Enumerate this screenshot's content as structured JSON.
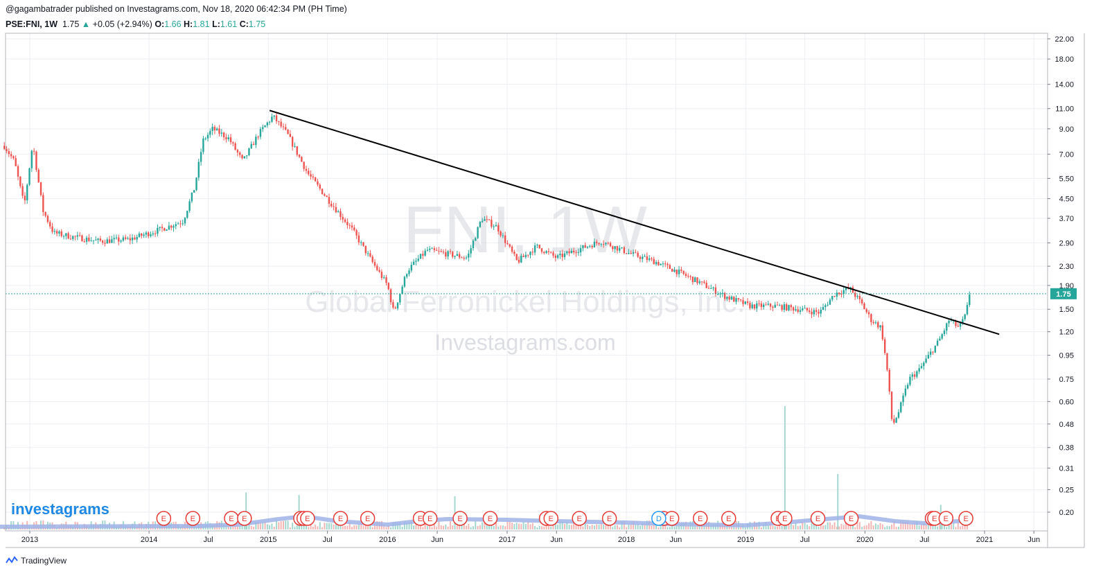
{
  "header": {
    "publisher_line": "@gagambatrader published on Investagrams.com, Nov 18, 2020 06:42:34 PM (PH Time)",
    "symbol": "PSE:FNI, 1W",
    "last": "1.75",
    "change": "+0.05 (+2.94%)",
    "o_label": "O:",
    "o": "1.66",
    "h_label": "H:",
    "h": "1.81",
    "l_label": "L:",
    "l": "1.61",
    "c_label": "C:",
    "c": "1.75",
    "up_arrow": "▲"
  },
  "watermark": {
    "ticker": "FNI, 1W",
    "company": "Global Ferronickel Holdings, Inc.",
    "site": "Investagrams.com"
  },
  "brand": {
    "logo_text": "investagrams",
    "footer": "TradingView"
  },
  "colors": {
    "up": "#26a69a",
    "down": "#ef5350",
    "trendline": "#000000",
    "volume_ma": "#9fb3e8",
    "earnings": "#e53935",
    "dividend": "#2196f3",
    "price_label_bg": "#26a69a"
  },
  "chart_data": {
    "type": "candlestick",
    "interval": "1W",
    "y_scale": "log",
    "y_ticks": [
      "22.00",
      "18.00",
      "14.00",
      "11.00",
      "9.00",
      "7.00",
      "5.50",
      "4.50",
      "3.70",
      "2.90",
      "2.30",
      "1.90",
      "1.50",
      "1.20",
      "0.95",
      "0.75",
      "0.60",
      "0.48",
      "0.38",
      "0.31",
      "0.25",
      "0.20"
    ],
    "x_ticks": [
      "2013",
      "2014",
      "Jul",
      "2015",
      "Jul",
      "2016",
      "Jun",
      "2017",
      "Jun",
      "2018",
      "Jun",
      "2019",
      "Jul",
      "2020",
      "Jul",
      "2021",
      "Jun"
    ],
    "last_price_label": "1.75",
    "price_path": [
      [
        "2012-10-15",
        7.6
      ],
      [
        "2012-11-15",
        6.5
      ],
      [
        "2012-12-15",
        4.2
      ],
      [
        "2013-01-10",
        7.8
      ],
      [
        "2013-02-10",
        4.0
      ],
      [
        "2013-03-15",
        3.2
      ],
      [
        "2013-05-01",
        3.1
      ],
      [
        "2013-08-01",
        2.95
      ],
      [
        "2013-11-01",
        3.0
      ],
      [
        "2014-02-01",
        3.3
      ],
      [
        "2014-04-15",
        3.6
      ],
      [
        "2014-05-20",
        5.0
      ],
      [
        "2014-06-15",
        8.0
      ],
      [
        "2014-07-15",
        9.0
      ],
      [
        "2014-09-01",
        8.2
      ],
      [
        "2014-10-15",
        6.5
      ],
      [
        "2014-12-01",
        8.5
      ],
      [
        "2015-01-15",
        10.2
      ],
      [
        "2015-03-01",
        8.5
      ],
      [
        "2015-05-01",
        5.8
      ],
      [
        "2015-07-01",
        4.5
      ],
      [
        "2015-09-15",
        3.3
      ],
      [
        "2015-11-15",
        2.4
      ],
      [
        "2016-01-01",
        1.9
      ],
      [
        "2016-01-20",
        1.45
      ],
      [
        "2016-03-01",
        2.2
      ],
      [
        "2016-05-01",
        2.7
      ],
      [
        "2016-07-01",
        2.6
      ],
      [
        "2016-09-01",
        2.5
      ],
      [
        "2016-10-15",
        3.7
      ],
      [
        "2016-12-01",
        3.4
      ],
      [
        "2017-02-01",
        2.4
      ],
      [
        "2017-04-01",
        2.8
      ],
      [
        "2017-06-01",
        2.5
      ],
      [
        "2017-08-01",
        2.7
      ],
      [
        "2017-10-15",
        2.95
      ],
      [
        "2018-01-15",
        2.6
      ],
      [
        "2018-04-01",
        2.4
      ],
      [
        "2018-06-01",
        2.2
      ],
      [
        "2018-08-15",
        1.95
      ],
      [
        "2018-11-01",
        1.7
      ],
      [
        "2019-01-15",
        1.55
      ],
      [
        "2019-04-01",
        1.55
      ],
      [
        "2019-06-15",
        1.5
      ],
      [
        "2019-08-15",
        1.45
      ],
      [
        "2019-10-01",
        1.75
      ],
      [
        "2019-11-15",
        1.85
      ],
      [
        "2019-12-20",
        1.6
      ],
      [
        "2020-01-20",
        1.35
      ],
      [
        "2020-02-20",
        1.25
      ],
      [
        "2020-03-10",
        0.8
      ],
      [
        "2020-03-25",
        0.47
      ],
      [
        "2020-04-15",
        0.55
      ],
      [
        "2020-05-15",
        0.75
      ],
      [
        "2020-06-15",
        0.82
      ],
      [
        "2020-07-15",
        0.95
      ],
      [
        "2020-08-15",
        1.1
      ],
      [
        "2020-09-15",
        1.35
      ],
      [
        "2020-10-15",
        1.25
      ],
      [
        "2020-11-05",
        1.42
      ],
      [
        "2020-11-16",
        1.75
      ]
    ],
    "trendline": {
      "start": [
        "2015-01-05",
        10.8
      ],
      "end": [
        "2021-02-15",
        1.17
      ]
    },
    "last_price": 1.75,
    "events": {
      "earnings": [
        "2014-02-15",
        "2014-05-15",
        "2014-09-10",
        "2014-10-20",
        "2015-04-10",
        "2015-04-20",
        "2015-05-01",
        "2015-08-10",
        "2015-11-01",
        "2016-04-10",
        "2016-05-10",
        "2016-08-10",
        "2016-11-10",
        "2017-05-01",
        "2017-05-15",
        "2017-08-10",
        "2017-11-10",
        "2018-04-25",
        "2018-05-20",
        "2018-08-15",
        "2018-11-10",
        "2019-04-10",
        "2019-05-01",
        "2019-08-10",
        "2019-11-20",
        "2020-07-25",
        "2020-08-01",
        "2020-09-05",
        "2020-11-05"
      ],
      "earnings_label": "E",
      "dividends": [
        "2018-04-10"
      ],
      "dividend_label": "D"
    },
    "volume_spikes": [
      [
        "2014-10-25",
        0.3
      ],
      [
        "2015-04-05",
        0.28
      ],
      [
        "2016-07-25",
        0.27
      ],
      [
        "2019-05-01",
        1.0
      ],
      [
        "2019-10-10",
        0.45
      ],
      [
        "2020-08-20",
        0.2
      ]
    ]
  }
}
